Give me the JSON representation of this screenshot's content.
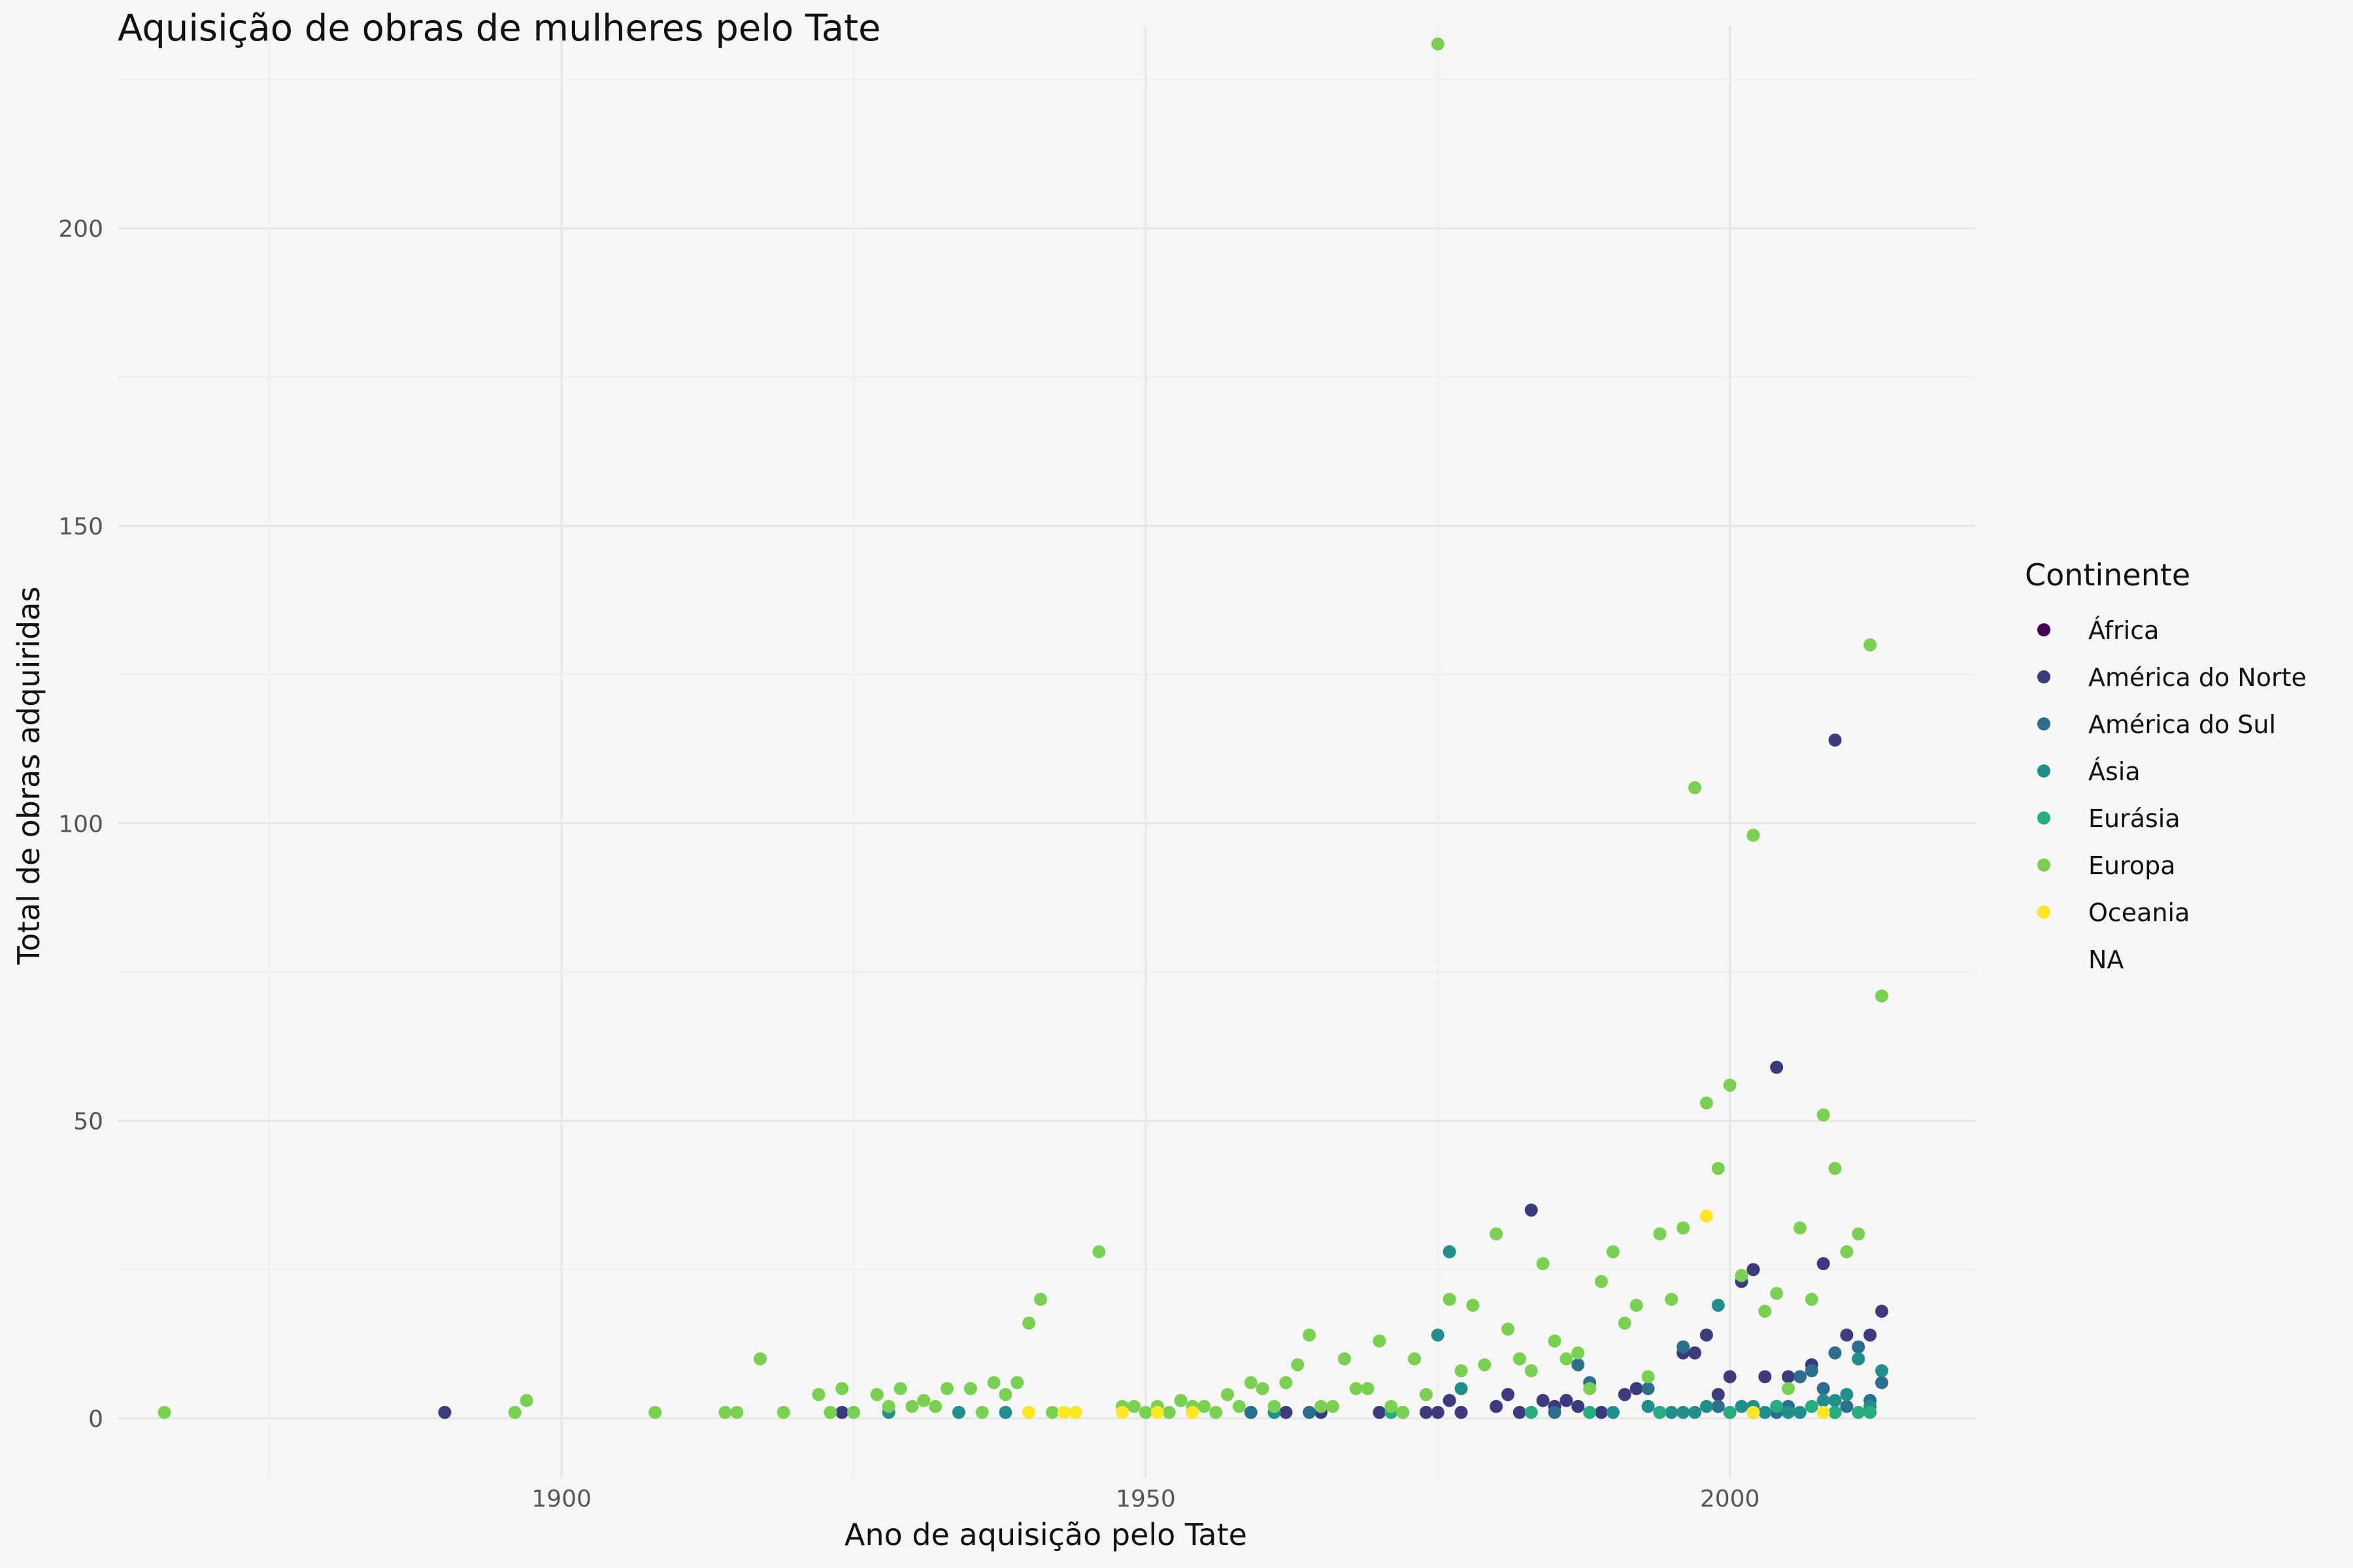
{
  "chart_data": {
    "type": "scatter",
    "title": "Aquisição de obras de mulheres pelo Tate",
    "xlabel": "Ano de aquisição pelo Tate",
    "ylabel": "Total de obras adquiridas",
    "xlim": [
      1862,
      2021
    ],
    "ylim": [
      -10,
      234
    ],
    "x_ticks": [
      1900,
      1950,
      2000
    ],
    "y_ticks": [
      0,
      50,
      100,
      150,
      200
    ],
    "grid": true,
    "legend": {
      "title": "Continente",
      "position": "right"
    },
    "series": [
      {
        "name": "África",
        "color": "#440154",
        "points": [
          [
            2009,
            1
          ]
        ]
      },
      {
        "name": "América do Norte",
        "color": "#3b3b7e",
        "points": [
          [
            1890,
            1
          ],
          [
            1924,
            1
          ],
          [
            1962,
            1
          ],
          [
            1965,
            1
          ],
          [
            1970,
            1
          ],
          [
            1974,
            1
          ],
          [
            1975,
            1
          ],
          [
            1976,
            3
          ],
          [
            1977,
            1
          ],
          [
            1980,
            2
          ],
          [
            1981,
            4
          ],
          [
            1982,
            1
          ],
          [
            1983,
            35
          ],
          [
            1984,
            3
          ],
          [
            1985,
            2
          ],
          [
            1986,
            3
          ],
          [
            1987,
            2
          ],
          [
            1989,
            1
          ],
          [
            1991,
            4
          ],
          [
            1992,
            5
          ],
          [
            1996,
            11
          ],
          [
            1997,
            11
          ],
          [
            1998,
            14
          ],
          [
            1999,
            4
          ],
          [
            2000,
            7
          ],
          [
            2001,
            23
          ],
          [
            2002,
            25
          ],
          [
            2003,
            7
          ],
          [
            2004,
            59
          ],
          [
            2005,
            7
          ],
          [
            2006,
            7
          ],
          [
            2007,
            9
          ],
          [
            2008,
            26
          ],
          [
            2009,
            114
          ],
          [
            2010,
            14
          ],
          [
            2011,
            10
          ],
          [
            2012,
            14
          ],
          [
            2013,
            18
          ]
        ]
      },
      {
        "name": "América do Sul",
        "color": "#2c6e8e",
        "points": [
          [
            1959,
            1
          ],
          [
            1964,
            1
          ],
          [
            1985,
            1
          ],
          [
            1987,
            9
          ],
          [
            1988,
            6
          ],
          [
            1993,
            5
          ],
          [
            1996,
            12
          ],
          [
            1999,
            2
          ],
          [
            2002,
            1
          ],
          [
            2004,
            1
          ],
          [
            2005,
            2
          ],
          [
            2006,
            7
          ],
          [
            2007,
            8
          ],
          [
            2008,
            5
          ],
          [
            2009,
            11
          ],
          [
            2010,
            2
          ],
          [
            2011,
            12
          ],
          [
            2012,
            3
          ],
          [
            2013,
            6
          ]
        ]
      },
      {
        "name": "Ásia",
        "color": "#21908d",
        "points": [
          [
            1928,
            1
          ],
          [
            1934,
            1
          ],
          [
            1938,
            1
          ],
          [
            1961,
            1
          ],
          [
            1972,
            1
          ],
          [
            1975,
            14
          ],
          [
            1976,
            28
          ],
          [
            1977,
            5
          ],
          [
            1990,
            1
          ],
          [
            1993,
            2
          ],
          [
            1994,
            1
          ],
          [
            1995,
            1
          ],
          [
            1996,
            1
          ],
          [
            1997,
            1
          ],
          [
            1998,
            2
          ],
          [
            1999,
            19
          ],
          [
            2000,
            1
          ],
          [
            2001,
            2
          ],
          [
            2002,
            2
          ],
          [
            2003,
            1
          ],
          [
            2004,
            2
          ],
          [
            2005,
            1
          ],
          [
            2006,
            1
          ],
          [
            2008,
            3
          ],
          [
            2009,
            3
          ],
          [
            2010,
            4
          ],
          [
            2011,
            10
          ],
          [
            2012,
            2
          ],
          [
            2013,
            8
          ]
        ]
      },
      {
        "name": "Eurásia",
        "color": "#27ad81",
        "points": [
          [
            1971,
            1
          ],
          [
            1983,
            1
          ],
          [
            1988,
            1
          ],
          [
            1994,
            1
          ],
          [
            2000,
            1
          ],
          [
            2004,
            2
          ],
          [
            2007,
            2
          ],
          [
            2009,
            1
          ],
          [
            2011,
            1
          ],
          [
            2012,
            1
          ]
        ]
      },
      {
        "name": "Europa",
        "color": "#7ad151",
        "points": [
          [
            1866,
            1
          ],
          [
            1896,
            1
          ],
          [
            1897,
            3
          ],
          [
            1908,
            1
          ],
          [
            1914,
            1
          ],
          [
            1915,
            1
          ],
          [
            1917,
            10
          ],
          [
            1919,
            1
          ],
          [
            1922,
            4
          ],
          [
            1923,
            1
          ],
          [
            1924,
            5
          ],
          [
            1925,
            1
          ],
          [
            1927,
            4
          ],
          [
            1928,
            2
          ],
          [
            1929,
            5
          ],
          [
            1930,
            2
          ],
          [
            1931,
            3
          ],
          [
            1932,
            2
          ],
          [
            1933,
            5
          ],
          [
            1935,
            5
          ],
          [
            1936,
            1
          ],
          [
            1937,
            6
          ],
          [
            1938,
            4
          ],
          [
            1939,
            6
          ],
          [
            1940,
            16
          ],
          [
            1941,
            20
          ],
          [
            1942,
            1
          ],
          [
            1946,
            28
          ],
          [
            1948,
            2
          ],
          [
            1949,
            2
          ],
          [
            1950,
            1
          ],
          [
            1951,
            2
          ],
          [
            1952,
            1
          ],
          [
            1953,
            3
          ],
          [
            1954,
            2
          ],
          [
            1955,
            2
          ],
          [
            1956,
            1
          ],
          [
            1957,
            4
          ],
          [
            1958,
            2
          ],
          [
            1959,
            6
          ],
          [
            1960,
            5
          ],
          [
            1961,
            2
          ],
          [
            1962,
            6
          ],
          [
            1963,
            9
          ],
          [
            1964,
            14
          ],
          [
            1965,
            2
          ],
          [
            1966,
            2
          ],
          [
            1967,
            10
          ],
          [
            1968,
            5
          ],
          [
            1969,
            5
          ],
          [
            1970,
            13
          ],
          [
            1971,
            2
          ],
          [
            1972,
            1
          ],
          [
            1973,
            10
          ],
          [
            1974,
            4
          ],
          [
            1976,
            20
          ],
          [
            1977,
            8
          ],
          [
            1978,
            19
          ],
          [
            1979,
            9
          ],
          [
            1980,
            31
          ],
          [
            1981,
            15
          ],
          [
            1982,
            10
          ],
          [
            1983,
            8
          ],
          [
            1984,
            26
          ],
          [
            1985,
            13
          ],
          [
            1986,
            10
          ],
          [
            1987,
            11
          ],
          [
            1988,
            5
          ],
          [
            1989,
            23
          ],
          [
            1990,
            28
          ],
          [
            1991,
            16
          ],
          [
            1992,
            19
          ],
          [
            1993,
            7
          ],
          [
            1994,
            31
          ],
          [
            1995,
            20
          ],
          [
            1996,
            32
          ],
          [
            1997,
            106
          ],
          [
            1998,
            53
          ],
          [
            1999,
            42
          ],
          [
            2000,
            56
          ],
          [
            2001,
            24
          ],
          [
            2002,
            98
          ],
          [
            2003,
            18
          ],
          [
            2004,
            21
          ],
          [
            2005,
            5
          ],
          [
            2006,
            32
          ],
          [
            2007,
            20
          ],
          [
            2008,
            51
          ],
          [
            2009,
            42
          ],
          [
            2010,
            28
          ],
          [
            2011,
            31
          ],
          [
            2012,
            130
          ],
          [
            2013,
            71
          ],
          [
            1975,
            231
          ]
        ]
      },
      {
        "name": "Oceania",
        "color": "#fde725",
        "points": [
          [
            1940,
            1
          ],
          [
            1943,
            1
          ],
          [
            1944,
            1
          ],
          [
            1948,
            1
          ],
          [
            1951,
            1
          ],
          [
            1954,
            1
          ],
          [
            1998,
            34
          ],
          [
            2002,
            1
          ],
          [
            2008,
            1
          ]
        ]
      },
      {
        "name": "NA",
        "color": "",
        "points": []
      }
    ]
  }
}
